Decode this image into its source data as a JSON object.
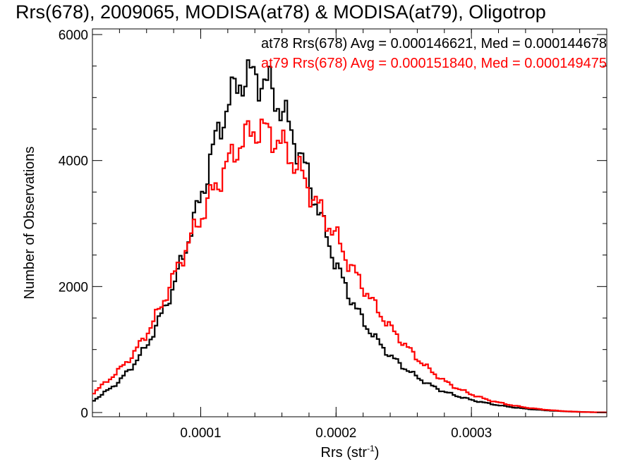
{
  "chart_data": {
    "type": "line",
    "title": "Rrs(678), 2009065, MODISA(at78) & MODISA(at79), Oligotrop",
    "xlabel_main": "Rrs (str",
    "xlabel_sup": "-1",
    "xlabel_close": ")",
    "ylabel": "Number of Observations",
    "xlim": [
      2e-05,
      0.0004
    ],
    "ylim": [
      0,
      6000
    ],
    "x_ticks": [
      {
        "value": 0.0001,
        "label": "0.0001"
      },
      {
        "value": 0.0002,
        "label": "0.0002"
      },
      {
        "value": 0.0003,
        "label": "0.0003"
      }
    ],
    "y_ticks": [
      {
        "value": 0,
        "label": "0"
      },
      {
        "value": 2000,
        "label": "2000"
      },
      {
        "value": 4000,
        "label": "4000"
      },
      {
        "value": 6000,
        "label": "6000"
      }
    ],
    "grid": false,
    "legend_position": "top-right",
    "bin_step": 2e-06,
    "series": [
      {
        "label": "at78 Rrs(678) Avg = 0.000146621, Med = 0.000144678",
        "color": "#000000",
        "x": [
          2e-05,
          3e-05,
          4e-05,
          5e-05,
          6e-05,
          7e-05,
          8e-05,
          9e-05,
          0.0001,
          0.00011,
          0.00012,
          0.00013,
          0.00014,
          0.00015,
          0.00016,
          0.00017,
          0.00018,
          0.00019,
          0.0002,
          0.00021,
          0.00022,
          0.00023,
          0.00024,
          0.00025,
          0.00026,
          0.00027,
          0.00028,
          0.00029,
          0.0003,
          0.00031,
          0.00032,
          0.00033,
          0.00034,
          0.00035,
          0.00036,
          0.00037,
          0.00038,
          0.00039,
          0.0004
        ],
        "values": [
          180,
          330,
          500,
          750,
          1050,
          1500,
          2000,
          2700,
          3400,
          4250,
          4900,
          5300,
          5350,
          5200,
          4800,
          4300,
          3700,
          3000,
          2350,
          1850,
          1450,
          1150,
          900,
          720,
          560,
          430,
          330,
          260,
          200,
          155,
          115,
          85,
          60,
          42,
          28,
          18,
          10,
          5,
          2
        ]
      },
      {
        "label": "at79 Rrs(678) Avg = 0.000151840, Med = 0.000149475",
        "color": "#ff0000",
        "x": [
          2e-05,
          3e-05,
          4e-05,
          5e-05,
          6e-05,
          7e-05,
          8e-05,
          9e-05,
          0.0001,
          0.00011,
          0.00012,
          0.00013,
          0.00014,
          0.00015,
          0.00016,
          0.00017,
          0.00018,
          0.00019,
          0.0002,
          0.00021,
          0.00022,
          0.00023,
          0.00024,
          0.00025,
          0.00026,
          0.00027,
          0.00028,
          0.00029,
          0.0003,
          0.00031,
          0.00032,
          0.00033,
          0.00034,
          0.00035,
          0.00036,
          0.00037,
          0.00038,
          0.00039,
          0.0004
        ],
        "values": [
          300,
          480,
          680,
          920,
          1250,
          1650,
          2150,
          2650,
          3100,
          3550,
          3950,
          4300,
          4500,
          4450,
          4250,
          3950,
          3550,
          3150,
          2800,
          2350,
          2000,
          1650,
          1350,
          1100,
          860,
          660,
          500,
          380,
          290,
          215,
          160,
          115,
          80,
          55,
          35,
          20,
          10,
          5,
          2
        ]
      }
    ]
  }
}
